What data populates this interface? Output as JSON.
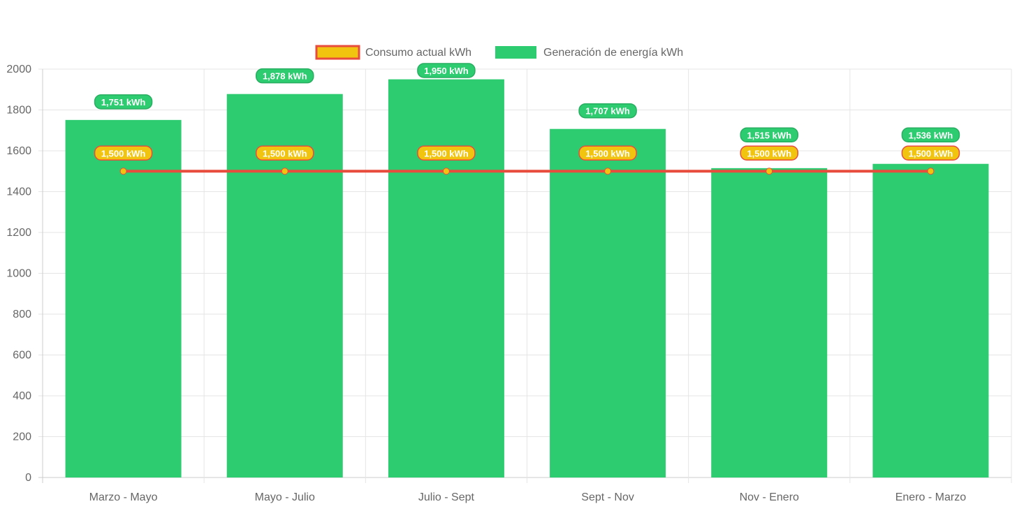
{
  "chart_data": {
    "type": "bar",
    "categories": [
      "Marzo - Mayo",
      "Mayo - Julio",
      "Julio - Sept",
      "Sept - Nov",
      "Nov - Enero",
      "Enero - Marzo"
    ],
    "series": [
      {
        "name": "Consumo actual kWh",
        "type": "line",
        "values": [
          1500,
          1500,
          1500,
          1500,
          1500,
          1500
        ],
        "labels": [
          "1,500 kWh",
          "1,500 kWh",
          "1,500 kWh",
          "1,500 kWh",
          "1,500 kWh",
          "1,500 kWh"
        ],
        "color": "#f1c40f",
        "border_color": "#e74c3c"
      },
      {
        "name": "Generación de energía kWh",
        "type": "bar",
        "values": [
          1751,
          1878,
          1950,
          1707,
          1515,
          1536
        ],
        "labels": [
          "1,751 kWh",
          "1,878 kWh",
          "1,950 kWh",
          "1,707 kWh",
          "1,515 kWh",
          "1,536 kWh"
        ],
        "color": "#2ecc71"
      }
    ],
    "yticks": [
      "0",
      "200",
      "400",
      "600",
      "800",
      "1000",
      "1200",
      "1400",
      "1600",
      "1800",
      "2000"
    ],
    "ylim": [
      0,
      2000
    ],
    "grid": true,
    "legend": "top"
  }
}
